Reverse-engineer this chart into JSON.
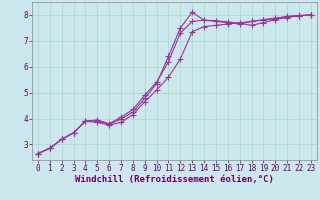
{
  "xlabel": "Windchill (Refroidissement éolien,°C)",
  "bg_color": "#cce8ee",
  "line_color": "#993399",
  "grid_color": "#aaddcc",
  "xlim": [
    -0.5,
    23.5
  ],
  "ylim": [
    2.4,
    8.5
  ],
  "xticks": [
    0,
    1,
    2,
    3,
    4,
    5,
    6,
    7,
    8,
    9,
    10,
    11,
    12,
    13,
    14,
    15,
    16,
    17,
    18,
    19,
    20,
    21,
    22,
    23
  ],
  "yticks": [
    3,
    4,
    5,
    6,
    7,
    8
  ],
  "line1_x": [
    0,
    1,
    2,
    3,
    4,
    5,
    6,
    7,
    8,
    9,
    10,
    11,
    12,
    13,
    14,
    15,
    16,
    17,
    18,
    19,
    20,
    21,
    22,
    23
  ],
  "line1_y": [
    2.65,
    2.85,
    3.2,
    3.45,
    3.9,
    3.95,
    3.8,
    4.05,
    4.35,
    4.9,
    5.4,
    6.2,
    7.3,
    7.75,
    7.8,
    7.75,
    7.7,
    7.65,
    7.75,
    7.8,
    7.85,
    7.95,
    7.98,
    8.0
  ],
  "line2_x": [
    0,
    1,
    2,
    3,
    4,
    5,
    6,
    7,
    8,
    9,
    10,
    11,
    12,
    13,
    14,
    15,
    16,
    17,
    18,
    19,
    20,
    21,
    22,
    23
  ],
  "line2_y": [
    2.65,
    2.85,
    3.2,
    3.45,
    3.9,
    3.85,
    3.75,
    3.85,
    4.15,
    4.65,
    5.1,
    5.6,
    6.3,
    7.35,
    7.55,
    7.6,
    7.65,
    7.7,
    7.75,
    7.82,
    7.88,
    7.93,
    7.97,
    8.0
  ],
  "line3_x": [
    0,
    1,
    2,
    3,
    4,
    5,
    6,
    7,
    8,
    9,
    10,
    11,
    12,
    13,
    14,
    15,
    16,
    17,
    18,
    19,
    20,
    21,
    22,
    23
  ],
  "line3_y": [
    2.65,
    2.85,
    3.2,
    3.45,
    3.9,
    3.9,
    3.78,
    3.98,
    4.25,
    4.78,
    5.35,
    6.4,
    7.5,
    8.1,
    7.8,
    7.78,
    7.73,
    7.68,
    7.6,
    7.7,
    7.82,
    7.9,
    7.97,
    8.0
  ],
  "marker": "+",
  "marker_size": 4,
  "line_width": 0.8,
  "xlabel_fontsize": 6.5,
  "tick_fontsize": 5.5,
  "xlabel_color": "#660066",
  "tick_color": "#660066",
  "axis_color": "#888888"
}
